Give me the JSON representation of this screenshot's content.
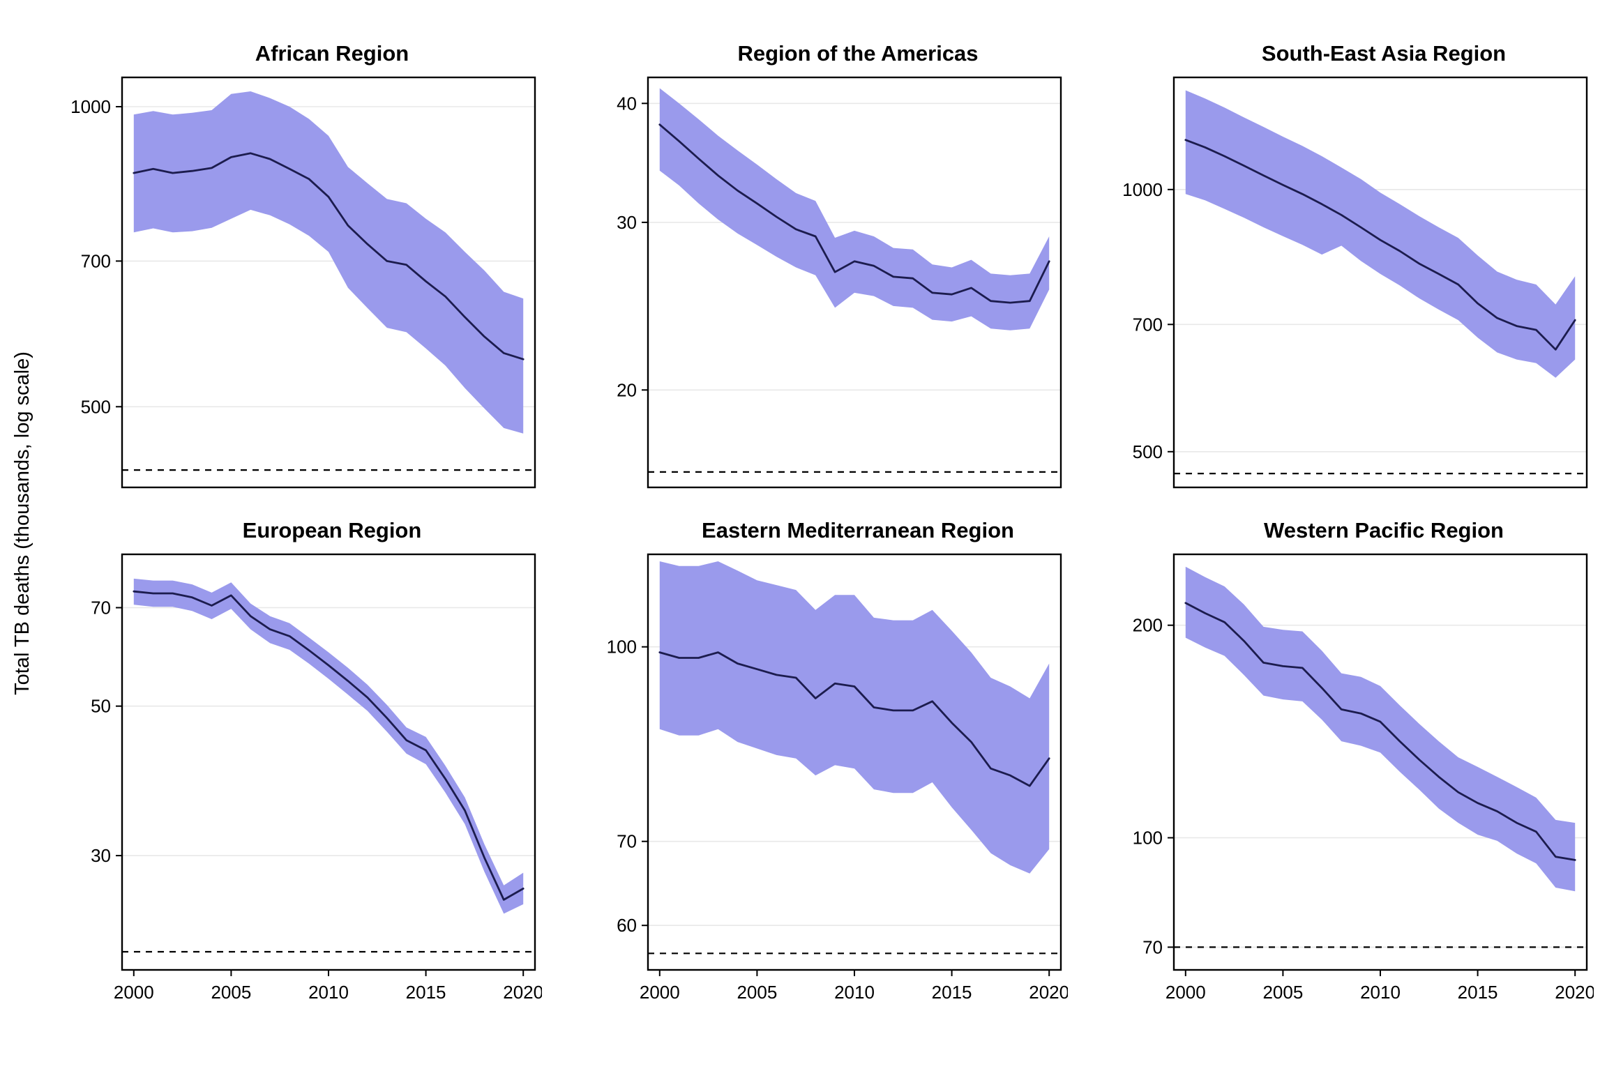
{
  "figure": {
    "ylabel": "Total TB deaths (thousands, log scale)"
  },
  "style": {
    "ribbon_color": "#9a9aec",
    "line_color": "#1c1c4e",
    "grid_color": "#e8e8e8",
    "axis_color": "#000000",
    "target_line_color": "#000000"
  },
  "chart_data": [
    {
      "type": "line",
      "title": "African Region",
      "x_label_visible": false,
      "x": [
        2000,
        2001,
        2002,
        2003,
        2004,
        2005,
        2006,
        2007,
        2008,
        2009,
        2010,
        2011,
        2012,
        2013,
        2014,
        2015,
        2016,
        2017,
        2018,
        2019,
        2020
      ],
      "x_ticks": [
        2000,
        2005,
        2010,
        2015,
        2020
      ],
      "xlim": [
        1999.4,
        2020.6
      ],
      "y_scale": "log",
      "ylim": [
        415,
        1070
      ],
      "y_ticks": [
        500,
        700,
        1000
      ],
      "target_line": 432,
      "series": [
        {
          "name": "estimate",
          "values": [
            858,
            866,
            858,
            862,
            868,
            890,
            898,
            886,
            866,
            846,
            812,
            760,
            728,
            700,
            694,
            668,
            645,
            615,
            588,
            566,
            558
          ]
        },
        {
          "name": "lower_bound",
          "values": [
            748,
            755,
            748,
            750,
            756,
            772,
            788,
            778,
            762,
            742,
            715,
            658,
            628,
            600,
            594,
            572,
            550,
            522,
            498,
            476,
            470
          ]
        },
        {
          "name": "upper_bound",
          "values": [
            982,
            990,
            982,
            986,
            992,
            1030,
            1036,
            1020,
            1000,
            972,
            935,
            870,
            838,
            808,
            800,
            772,
            748,
            715,
            685,
            652,
            642
          ]
        }
      ]
    },
    {
      "type": "line",
      "title": "Region of the Americas",
      "x_label_visible": false,
      "x": [
        2000,
        2001,
        2002,
        2003,
        2004,
        2005,
        2006,
        2007,
        2008,
        2009,
        2010,
        2011,
        2012,
        2013,
        2014,
        2015,
        2016,
        2017,
        2018,
        2019,
        2020
      ],
      "x_ticks": [
        2000,
        2005,
        2010,
        2015,
        2020
      ],
      "xlim": [
        1999.4,
        2020.6
      ],
      "y_scale": "log",
      "ylim": [
        15.8,
        42.6
      ],
      "y_ticks": [
        20,
        30,
        40
      ],
      "target_line": 16.4,
      "series": [
        {
          "name": "estimate",
          "values": [
            38.0,
            36.5,
            35.0,
            33.6,
            32.4,
            31.4,
            30.4,
            29.5,
            29.0,
            26.6,
            27.3,
            27.0,
            26.3,
            26.2,
            25.3,
            25.2,
            25.6,
            24.8,
            24.7,
            24.8,
            27.3
          ]
        },
        {
          "name": "lower_bound",
          "values": [
            34.0,
            32.8,
            31.4,
            30.2,
            29.2,
            28.4,
            27.6,
            26.9,
            26.4,
            24.4,
            25.3,
            25.1,
            24.5,
            24.4,
            23.7,
            23.6,
            23.9,
            23.2,
            23.1,
            23.2,
            25.5
          ]
        },
        {
          "name": "upper_bound",
          "values": [
            41.5,
            40.0,
            38.5,
            37.0,
            35.7,
            34.5,
            33.3,
            32.2,
            31.6,
            28.9,
            29.4,
            29.0,
            28.2,
            28.1,
            27.1,
            26.9,
            27.4,
            26.5,
            26.4,
            26.5,
            29.0
          ]
        }
      ]
    },
    {
      "type": "line",
      "title": "South-East Asia Region",
      "x_label_visible": false,
      "x": [
        2000,
        2001,
        2002,
        2003,
        2004,
        2005,
        2006,
        2007,
        2008,
        2009,
        2010,
        2011,
        2012,
        2013,
        2014,
        2015,
        2016,
        2017,
        2018,
        2019,
        2020
      ],
      "x_ticks": [
        2000,
        2005,
        2010,
        2015,
        2020
      ],
      "xlim": [
        1999.4,
        2020.6
      ],
      "y_scale": "log",
      "ylim": [
        455,
        1345
      ],
      "y_ticks": [
        500,
        700,
        1000
      ],
      "target_line": 472,
      "series": [
        {
          "name": "estimate",
          "values": [
            1140,
            1118,
            1092,
            1065,
            1038,
            1012,
            988,
            962,
            935,
            905,
            875,
            850,
            822,
            800,
            778,
            740,
            712,
            697,
            690,
            655,
            708
          ]
        },
        {
          "name": "lower_bound",
          "values": [
            988,
            972,
            950,
            928,
            905,
            884,
            864,
            842,
            862,
            828,
            800,
            776,
            750,
            728,
            708,
            676,
            650,
            638,
            632,
            608,
            638
          ]
        },
        {
          "name": "upper_bound",
          "values": [
            1300,
            1272,
            1242,
            1210,
            1180,
            1150,
            1122,
            1092,
            1060,
            1028,
            992,
            962,
            932,
            905,
            880,
            840,
            805,
            788,
            778,
            738,
            795
          ]
        }
      ]
    },
    {
      "type": "line",
      "title": "European Region",
      "x_label_visible": true,
      "x": [
        2000,
        2001,
        2002,
        2003,
        2004,
        2005,
        2006,
        2007,
        2008,
        2009,
        2010,
        2011,
        2012,
        2013,
        2014,
        2015,
        2016,
        2017,
        2018,
        2019,
        2020
      ],
      "x_ticks": [
        2000,
        2005,
        2010,
        2015,
        2020
      ],
      "xlim": [
        1999.4,
        2020.6
      ],
      "y_scale": "log",
      "ylim": [
        20.3,
        84
      ],
      "y_ticks": [
        30,
        50,
        70
      ],
      "target_line": 21.6,
      "series": [
        {
          "name": "estimate",
          "values": [
            74,
            73.5,
            73.5,
            72.5,
            70.5,
            73,
            68,
            65,
            63.5,
            60.5,
            57.5,
            54.5,
            51.5,
            48,
            44.5,
            43,
            39,
            35,
            29.8,
            25.8,
            26.8
          ]
        },
        {
          "name": "lower_bound",
          "values": [
            70.7,
            70.2,
            70.2,
            69.2,
            67.3,
            69.7,
            65,
            62,
            60.6,
            57.8,
            54.9,
            52,
            49.2,
            45.8,
            42.5,
            41,
            37.2,
            33.4,
            28.4,
            24.6,
            25.4
          ]
        },
        {
          "name": "upper_bound",
          "values": [
            77.3,
            76.8,
            76.8,
            75.8,
            73.7,
            76.3,
            71,
            68,
            66.4,
            63.2,
            60.1,
            57,
            53.8,
            50.2,
            46.5,
            45,
            40.8,
            36.6,
            31.2,
            27.1,
            28.3
          ]
        }
      ]
    },
    {
      "type": "line",
      "title": "Eastern Mediterranean Region",
      "x_label_visible": true,
      "x": [
        2000,
        2001,
        2002,
        2003,
        2004,
        2005,
        2006,
        2007,
        2008,
        2009,
        2010,
        2011,
        2012,
        2013,
        2014,
        2015,
        2016,
        2017,
        2018,
        2019,
        2020
      ],
      "x_ticks": [
        2000,
        2005,
        2010,
        2015,
        2020
      ],
      "xlim": [
        1999.4,
        2020.6
      ],
      "y_scale": "log",
      "ylim": [
        55.3,
        118.5
      ],
      "y_ticks": [
        60,
        70,
        100
      ],
      "target_line": 57,
      "series": [
        {
          "name": "estimate",
          "values": [
            99,
            98,
            98,
            99,
            97,
            96,
            95,
            94.5,
            91,
            93.5,
            93,
            89.5,
            89,
            89,
            90.5,
            87,
            84,
            80,
            79,
            77.5,
            81.5
          ]
        },
        {
          "name": "lower_bound",
          "values": [
            86,
            85,
            85,
            86,
            84,
            83,
            82,
            81.5,
            79,
            80.5,
            80,
            77,
            76.5,
            76.5,
            78,
            74.5,
            71.5,
            68.5,
            67,
            66,
            69
          ]
        },
        {
          "name": "upper_bound",
          "values": [
            117,
            116,
            116,
            117,
            115,
            113,
            112,
            111,
            107,
            110,
            110,
            105.5,
            105,
            105,
            107,
            103,
            99,
            94.5,
            93,
            91,
            97
          ]
        }
      ]
    },
    {
      "type": "line",
      "title": "Western Pacific Region",
      "x_label_visible": true,
      "x": [
        2000,
        2001,
        2002,
        2003,
        2004,
        2005,
        2006,
        2007,
        2008,
        2009,
        2010,
        2011,
        2012,
        2013,
        2014,
        2015,
        2016,
        2017,
        2018,
        2019,
        2020
      ],
      "x_ticks": [
        2000,
        2005,
        2010,
        2015,
        2020
      ],
      "xlim": [
        1999.4,
        2020.6
      ],
      "y_scale": "log",
      "ylim": [
        65,
        252
      ],
      "y_ticks": [
        70,
        100,
        200
      ],
      "target_line": 70,
      "series": [
        {
          "name": "estimate",
          "values": [
            215,
            208,
            202,
            190,
            177,
            175,
            174,
            163,
            152,
            150,
            146,
            137,
            129,
            122,
            116,
            112,
            109,
            105,
            102,
            94,
            93
          ]
        },
        {
          "name": "lower_bound",
          "values": [
            192,
            186,
            181,
            170,
            159,
            157,
            156,
            147,
            137,
            135,
            132,
            124,
            117,
            110,
            105,
            101,
            99,
            95,
            92,
            85,
            84
          ]
        },
        {
          "name": "upper_bound",
          "values": [
            242,
            234,
            227,
            214,
            199,
            197,
            196,
            184,
            171,
            169,
            164,
            154,
            145,
            137,
            130,
            126,
            122,
            118,
            114,
            106,
            105
          ]
        }
      ]
    }
  ]
}
